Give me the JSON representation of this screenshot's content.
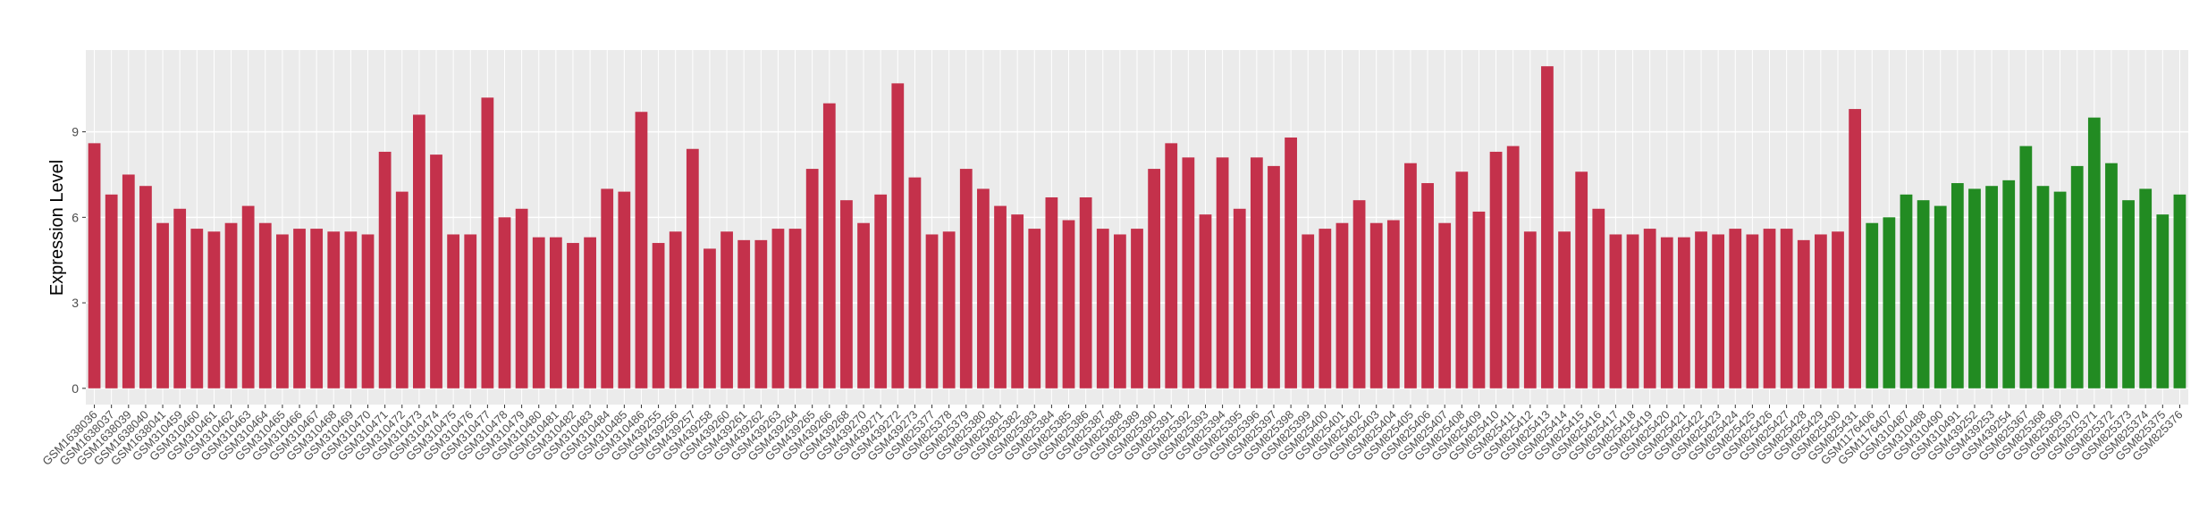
{
  "chart_data": {
    "type": "bar",
    "y_label": "Expression Level",
    "categories": [
      "GSM1638036",
      "GSM1638037",
      "GSM1638039",
      "GSM1638040",
      "GSM1638041",
      "GSM310459",
      "GSM310460",
      "GSM310461",
      "GSM310462",
      "GSM310463",
      "GSM310464",
      "GSM310465",
      "GSM310466",
      "GSM310467",
      "GSM310468",
      "GSM310469",
      "GSM310470",
      "GSM310471",
      "GSM310472",
      "GSM310473",
      "GSM310474",
      "GSM310475",
      "GSM310476",
      "GSM310477",
      "GSM310478",
      "GSM310479",
      "GSM310480",
      "GSM310481",
      "GSM310482",
      "GSM310483",
      "GSM310484",
      "GSM310485",
      "GSM310486",
      "GSM439255",
      "GSM439256",
      "GSM439257",
      "GSM439258",
      "GSM439260",
      "GSM439261",
      "GSM439262",
      "GSM439263",
      "GSM439264",
      "GSM439265",
      "GSM439266",
      "GSM439268",
      "GSM439270",
      "GSM439271",
      "GSM439272",
      "GSM439273",
      "GSM825377",
      "GSM825378",
      "GSM825379",
      "GSM825380",
      "GSM825381",
      "GSM825382",
      "GSM825383",
      "GSM825384",
      "GSM825385",
      "GSM825386",
      "GSM825387",
      "GSM825388",
      "GSM825389",
      "GSM825390",
      "GSM825391",
      "GSM825392",
      "GSM825393",
      "GSM825394",
      "GSM825395",
      "GSM825396",
      "GSM825397",
      "GSM825398",
      "GSM825399",
      "GSM825400",
      "GSM825401",
      "GSM825402",
      "GSM825403",
      "GSM825404",
      "GSM825405",
      "GSM825406",
      "GSM825407",
      "GSM825408",
      "GSM825409",
      "GSM825410",
      "GSM825411",
      "GSM825412",
      "GSM825413",
      "GSM825414",
      "GSM825415",
      "GSM825416",
      "GSM825417",
      "GSM825418",
      "GSM825419",
      "GSM825420",
      "GSM825421",
      "GSM825422",
      "GSM825423",
      "GSM825424",
      "GSM825425",
      "GSM825426",
      "GSM825427",
      "GSM825428",
      "GSM825429",
      "GSM825430",
      "GSM825431",
      "GSM1176406",
      "GSM1176407",
      "GSM310487",
      "GSM310488",
      "GSM310490",
      "GSM310491",
      "GSM439252",
      "GSM439253",
      "GSM439254",
      "GSM825367",
      "GSM825368",
      "GSM825369",
      "GSM825370",
      "GSM825371",
      "GSM825372",
      "GSM825373",
      "GSM825374",
      "GSM825375",
      "GSM825376"
    ],
    "values": [
      8.6,
      6.8,
      7.5,
      7.1,
      5.8,
      6.3,
      5.6,
      5.5,
      5.8,
      6.4,
      5.8,
      5.4,
      5.6,
      5.6,
      5.5,
      5.5,
      5.4,
      8.3,
      6.9,
      9.6,
      8.2,
      5.4,
      5.4,
      10.2,
      6.0,
      6.3,
      5.3,
      5.3,
      5.1,
      5.3,
      7.0,
      6.9,
      9.7,
      5.1,
      5.5,
      8.4,
      4.9,
      5.5,
      5.2,
      5.2,
      5.6,
      5.6,
      7.7,
      10.0,
      6.6,
      5.8,
      6.8,
      10.7,
      7.4,
      5.4,
      5.5,
      7.7,
      7.0,
      6.4,
      6.1,
      5.6,
      6.7,
      5.9,
      6.7,
      5.6,
      5.4,
      5.6,
      7.7,
      8.6,
      8.1,
      6.1,
      8.1,
      6.3,
      8.1,
      7.8,
      8.8,
      5.4,
      5.6,
      5.8,
      6.6,
      5.8,
      5.9,
      7.9,
      7.2,
      5.8,
      7.6,
      6.2,
      8.3,
      8.5,
      5.5,
      11.3,
      5.5,
      7.6,
      6.3,
      5.4,
      5.4,
      5.6,
      5.3,
      5.3,
      5.5,
      5.4,
      5.6,
      5.4,
      5.6,
      5.6,
      5.2,
      5.4,
      5.5,
      9.8,
      5.8,
      6.0,
      6.8,
      6.6,
      6.4,
      7.2,
      7.0,
      7.1,
      7.3,
      8.5,
      7.1,
      6.9,
      7.8,
      9.5,
      7.9,
      6.6,
      7.0,
      6.1,
      6.8
    ],
    "colors": [
      "#c4314b",
      "#c4314b",
      "#c4314b",
      "#c4314b",
      "#c4314b",
      "#c4314b",
      "#c4314b",
      "#c4314b",
      "#c4314b",
      "#c4314b",
      "#c4314b",
      "#c4314b",
      "#c4314b",
      "#c4314b",
      "#c4314b",
      "#c4314b",
      "#c4314b",
      "#c4314b",
      "#c4314b",
      "#c4314b",
      "#c4314b",
      "#c4314b",
      "#c4314b",
      "#c4314b",
      "#c4314b",
      "#c4314b",
      "#c4314b",
      "#c4314b",
      "#c4314b",
      "#c4314b",
      "#c4314b",
      "#c4314b",
      "#c4314b",
      "#c4314b",
      "#c4314b",
      "#c4314b",
      "#c4314b",
      "#c4314b",
      "#c4314b",
      "#c4314b",
      "#c4314b",
      "#c4314b",
      "#c4314b",
      "#c4314b",
      "#c4314b",
      "#c4314b",
      "#c4314b",
      "#c4314b",
      "#c4314b",
      "#c4314b",
      "#c4314b",
      "#c4314b",
      "#c4314b",
      "#c4314b",
      "#c4314b",
      "#c4314b",
      "#c4314b",
      "#c4314b",
      "#c4314b",
      "#c4314b",
      "#c4314b",
      "#c4314b",
      "#c4314b",
      "#c4314b",
      "#c4314b",
      "#c4314b",
      "#c4314b",
      "#c4314b",
      "#c4314b",
      "#c4314b",
      "#c4314b",
      "#c4314b",
      "#c4314b",
      "#c4314b",
      "#c4314b",
      "#c4314b",
      "#c4314b",
      "#c4314b",
      "#c4314b",
      "#c4314b",
      "#c4314b",
      "#c4314b",
      "#c4314b",
      "#c4314b",
      "#c4314b",
      "#c4314b",
      "#c4314b",
      "#c4314b",
      "#c4314b",
      "#c4314b",
      "#c4314b",
      "#c4314b",
      "#c4314b",
      "#c4314b",
      "#c4314b",
      "#c4314b",
      "#c4314b",
      "#c4314b",
      "#c4314b",
      "#c4314b",
      "#c4314b",
      "#c4314b",
      "#c4314b",
      "#c4314b",
      "#228b22",
      "#228b22",
      "#228b22",
      "#228b22",
      "#228b22",
      "#228b22",
      "#228b22",
      "#228b22",
      "#228b22",
      "#228b22",
      "#228b22",
      "#228b22",
      "#228b22",
      "#228b22",
      "#228b22",
      "#228b22",
      "#228b22",
      "#228b22",
      "#228b22"
    ],
    "ylim": [
      -0.57,
      11.87
    ],
    "yticks": [
      0,
      3,
      6,
      9
    ],
    "grid": true
  }
}
